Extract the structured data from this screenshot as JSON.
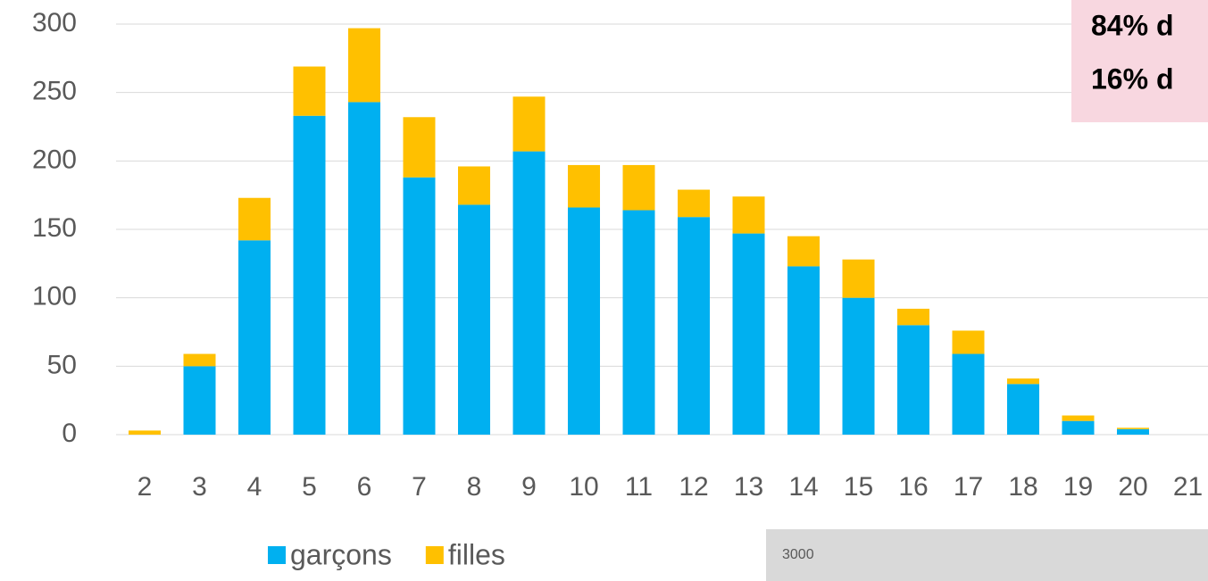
{
  "chart_data": {
    "type": "stacked_bar",
    "categories": [
      "2",
      "3",
      "4",
      "5",
      "6",
      "7",
      "8",
      "9",
      "10",
      "11",
      "12",
      "13",
      "14",
      "15",
      "16",
      "17",
      "18",
      "19",
      "20",
      "21"
    ],
    "series": [
      {
        "name": "garçons",
        "color": "#00b0f0",
        "values": [
          0,
          50,
          142,
          233,
          243,
          188,
          168,
          207,
          166,
          164,
          159,
          147,
          123,
          100,
          80,
          59,
          37,
          10,
          4,
          0
        ]
      },
      {
        "name": "filles",
        "color": "#ffc000",
        "values": [
          3,
          9,
          31,
          36,
          54,
          44,
          28,
          40,
          31,
          33,
          20,
          27,
          22,
          28,
          12,
          17,
          4,
          4,
          1,
          0
        ]
      }
    ],
    "ylim": [
      0,
      300
    ],
    "yticks": [
      0,
      50,
      100,
      150,
      200,
      250,
      300
    ],
    "grid": true,
    "annotations": [
      "84% d",
      "16% d",
      "3000"
    ]
  }
}
